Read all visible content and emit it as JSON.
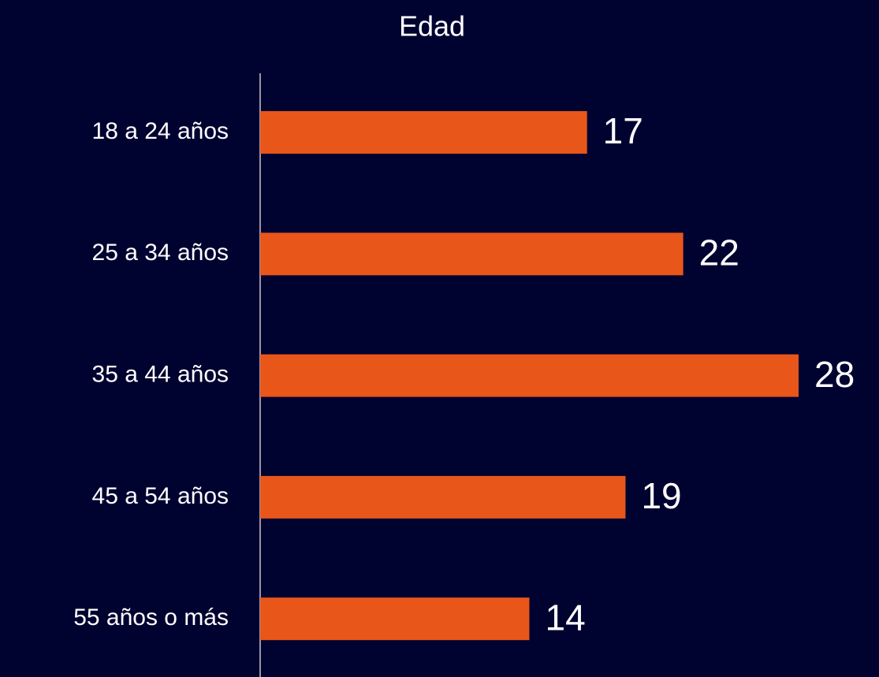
{
  "chart_data": {
    "type": "bar",
    "orientation": "horizontal",
    "title": "Edad",
    "categories": [
      "18 a 24 años",
      "25 a 34 años",
      "35 a 44 años",
      "45 a 54 años",
      "55 años o más"
    ],
    "values": [
      17,
      22,
      28,
      19,
      14
    ],
    "color": "#e8561a"
  }
}
